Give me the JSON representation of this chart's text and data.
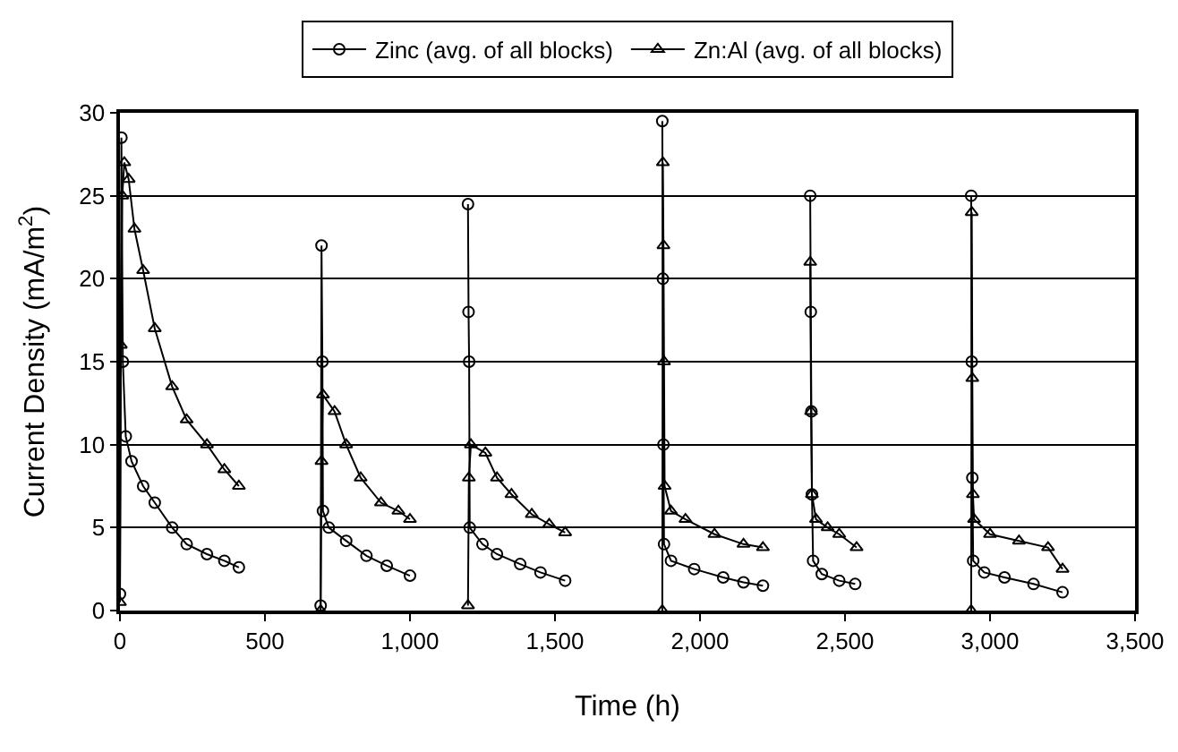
{
  "chart_data": {
    "type": "line",
    "xlabel": "Time (h)",
    "ylabel": "Current Density (mA/m$^{2}$)",
    "xlim": [
      0,
      3500
    ],
    "ylim": [
      0,
      30
    ],
    "xticks": [
      0,
      500,
      {
        "value": 1000,
        "label": "1,000"
      },
      {
        "value": 1500,
        "label": "1,500"
      },
      {
        "value": 2000,
        "label": "2,000"
      },
      {
        "value": 2500,
        "label": "2,500"
      },
      {
        "value": 3000,
        "label": "3,000"
      },
      {
        "value": 3500,
        "label": "3,500"
      }
    ],
    "yticks": [
      0,
      5,
      10,
      15,
      20,
      25,
      30
    ],
    "grid": "y",
    "legend": "top",
    "line_style": "solid",
    "series": [
      {
        "name": "Zinc (avg. of all blocks)",
        "color": "#000000",
        "marker": "circle",
        "x": [
          0,
          5,
          10,
          20,
          40,
          80,
          120,
          180,
          230,
          300,
          360,
          410,
          550,
          692,
          695,
          698,
          700,
          720,
          780,
          850,
          920,
          1000,
          1100,
          1200,
          1202,
          1204,
          1206,
          1250,
          1300,
          1380,
          1450,
          1535,
          1700,
          1870,
          1872,
          1874,
          1876,
          1900,
          1980,
          2080,
          2150,
          2217,
          2300,
          2380,
          2382,
          2384,
          2386,
          2390,
          2420,
          2480,
          2535,
          2700,
          2935,
          2937,
          2939,
          2942,
          2980,
          3050,
          3150,
          3250
        ],
        "values": [
          1,
          28.5,
          15,
          10.5,
          9,
          7.5,
          6.5,
          5,
          4,
          3.4,
          3,
          2.6,
          null,
          0.3,
          22,
          15,
          6,
          5,
          4.2,
          3.3,
          2.7,
          2.1,
          null,
          24.5,
          18,
          15,
          5,
          4,
          3.4,
          2.8,
          2.3,
          1.8,
          null,
          29.5,
          20,
          10,
          4,
          3,
          2.5,
          2,
          1.7,
          1.5,
          null,
          25,
          18,
          12,
          7,
          3,
          2.2,
          1.8,
          1.6,
          null,
          25,
          15,
          8,
          3,
          2.3,
          2,
          1.6,
          1.1
        ]
      },
      {
        "name": "Zn:Al (avg. of all blocks)",
        "color": "#000000",
        "marker": "triangle",
        "x": [
          0,
          3,
          8,
          15,
          30,
          50,
          80,
          120,
          180,
          230,
          300,
          360,
          410,
          550,
          692,
          695,
          700,
          740,
          780,
          830,
          900,
          960,
          1000,
          1100,
          1200,
          1203,
          1210,
          1260,
          1300,
          1350,
          1420,
          1480,
          1535,
          1700,
          1870,
          1872,
          1874,
          1876,
          1878,
          1900,
          1950,
          2050,
          2150,
          2217,
          2300,
          2380,
          2383,
          2386,
          2400,
          2440,
          2480,
          2540,
          2700,
          2935,
          2937,
          2939,
          2941,
          2945,
          3000,
          3100,
          3200,
          3250
        ],
        "values": [
          0.5,
          16,
          25,
          27,
          26,
          23,
          20.5,
          17,
          13.5,
          11.5,
          10,
          8.5,
          7.5,
          null,
          0,
          9,
          13,
          12,
          10,
          8,
          6.5,
          6,
          5.5,
          null,
          0.3,
          8,
          10,
          9.5,
          8,
          7,
          5.8,
          5.2,
          4.7,
          null,
          0,
          27,
          22,
          15,
          7.5,
          6,
          5.5,
          4.6,
          4,
          3.8,
          null,
          21,
          12,
          7,
          5.5,
          5,
          4.6,
          3.8,
          null,
          0,
          24,
          14,
          7,
          5.5,
          4.6,
          4.2,
          3.8,
          2.5
        ]
      }
    ]
  }
}
